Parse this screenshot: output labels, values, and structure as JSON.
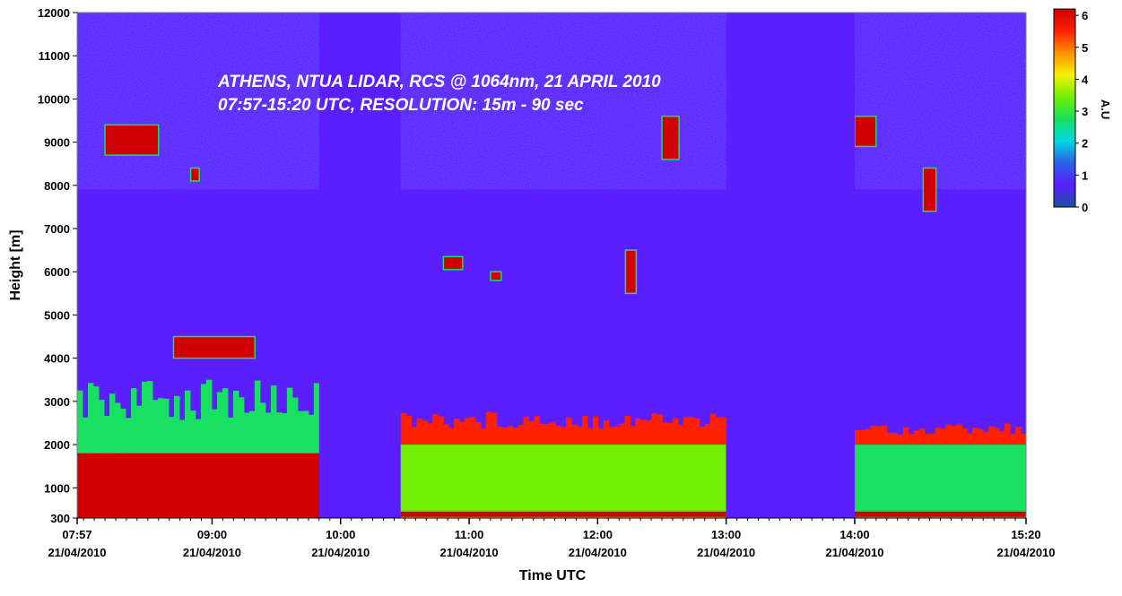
{
  "chart_data": {
    "type": "heatmap",
    "title_line1": "ATHENS, NTUA LIDAR, RCS @ 1064nm, 21 APRIL 2010",
    "title_line2": "07:57-15:20 UTC, RESOLUTION: 15m - 90 sec",
    "xlabel": "Time UTC",
    "ylabel": "Height [m]",
    "xlim": [
      "07:57",
      "15:20"
    ],
    "ylim": [
      300,
      12000
    ],
    "y_ticks": [
      300,
      1000,
      2000,
      3000,
      4000,
      5000,
      6000,
      7000,
      8000,
      9000,
      10000,
      11000,
      12000
    ],
    "x_ticks": [
      {
        "time": "07:57",
        "date": "21/04/2010"
      },
      {
        "time": "09:00",
        "date": "21/04/2010"
      },
      {
        "time": "10:00",
        "date": "21/04/2010"
      },
      {
        "time": "11:00",
        "date": "21/04/2010"
      },
      {
        "time": "12:00",
        "date": "21/04/2010"
      },
      {
        "time": "13:00",
        "date": "21/04/2010"
      },
      {
        "time": "14:00",
        "date": "21/04/2010"
      },
      {
        "time": "15:20",
        "date": "21/04/2010"
      }
    ],
    "colorbar": {
      "label": "A.U",
      "range": [
        0,
        6.2
      ],
      "ticks": [
        0,
        1,
        2,
        3,
        4,
        5,
        6
      ],
      "colors": [
        "#1e50a0",
        "#5a1eff",
        "#2a60e8",
        "#00d8e0",
        "#18e060",
        "#70f000",
        "#f8f000",
        "#ff9000",
        "#ff2000",
        "#d00000"
      ]
    },
    "no_data_gaps": [
      [
        "09:50",
        "10:28"
      ],
      [
        "13:00",
        "14:00"
      ]
    ],
    "features": [
      {
        "type": "boundary_layer",
        "time": [
          "07:57",
          "09:50"
        ],
        "height": [
          300,
          1800
        ],
        "value": 6.2
      },
      {
        "type": "aerosol_layer",
        "time": [
          "07:57",
          "09:50"
        ],
        "height": [
          1800,
          3500
        ],
        "value": 2.5
      },
      {
        "type": "boundary_layer",
        "time": [
          "10:28",
          "13:00"
        ],
        "height": [
          300,
          2000
        ],
        "value": 3.5
      },
      {
        "type": "aerosol_layer",
        "time": [
          "10:28",
          "13:00"
        ],
        "height": [
          2000,
          2800
        ],
        "value": 5.8
      },
      {
        "type": "boundary_layer",
        "time": [
          "14:00",
          "15:20"
        ],
        "height": [
          300,
          2000
        ],
        "value": 3.0
      },
      {
        "type": "aerosol_layer",
        "time": [
          "14:00",
          "15:20"
        ],
        "height": [
          2000,
          2500
        ],
        "value": 5.5
      },
      {
        "type": "cloud",
        "time": [
          "08:10",
          "08:35"
        ],
        "height": [
          8700,
          9400
        ],
        "value": 6.2
      },
      {
        "type": "cloud",
        "time": [
          "08:42",
          "09:20"
        ],
        "height": [
          4000,
          4500
        ],
        "value": 6.2
      },
      {
        "type": "cloud",
        "time": [
          "08:50",
          "08:54"
        ],
        "height": [
          8100,
          8400
        ],
        "value": 6.2
      },
      {
        "type": "cloud",
        "time": [
          "10:48",
          "10:57"
        ],
        "height": [
          6050,
          6350
        ],
        "value": 6.2
      },
      {
        "type": "cloud",
        "time": [
          "11:10",
          "11:15"
        ],
        "height": [
          5800,
          6000
        ],
        "value": 6.2
      },
      {
        "type": "cloud",
        "time": [
          "12:13",
          "12:18"
        ],
        "height": [
          5500,
          6500
        ],
        "value": 6.2
      },
      {
        "type": "cloud",
        "time": [
          "12:30",
          "12:38"
        ],
        "height": [
          8600,
          9600
        ],
        "value": 6.2
      },
      {
        "type": "cloud",
        "time": [
          "14:00",
          "14:10"
        ],
        "height": [
          8900,
          9600
        ],
        "value": 6.2
      },
      {
        "type": "cloud",
        "time": [
          "14:32",
          "14:38"
        ],
        "height": [
          7400,
          8400
        ],
        "value": 6.2
      }
    ]
  }
}
